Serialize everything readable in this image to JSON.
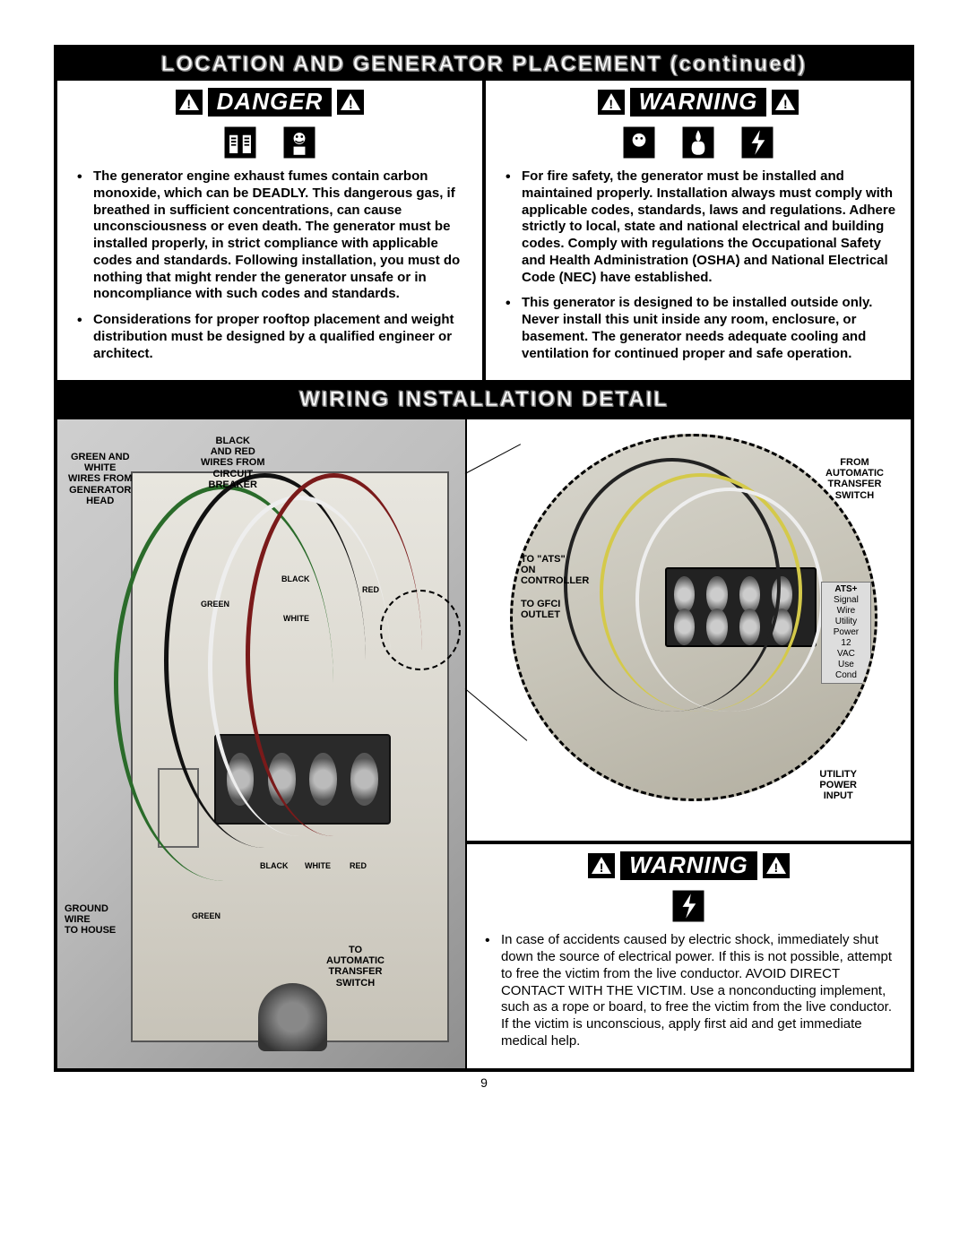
{
  "header": {
    "title": "LOCATION AND GENERATOR PLACEMENT (continued)"
  },
  "danger": {
    "label": "DANGER",
    "bullets": [
      "The generator engine exhaust fumes contain carbon monoxide, which can be DEADLY. This dangerous gas, if breathed in sufficient concentrations, can cause unconsciousness or even death. The generator must be installed properly, in strict   compliance with applicable codes and standards. Following installation, you must do nothing that might render the generator unsafe or in noncompliance with such codes and standards.",
      "Considerations for proper rooftop placement and weight distribution must be designed by a qualified engineer or architect."
    ]
  },
  "warning1": {
    "label": "WARNING",
    "bullets": [
      "For fire safety, the generator must be installed and maintained properly. Installation always must comply with applicable codes, standards, laws and regulations. Adhere strictly to local, state and national electrical and building codes. Comply with regulations the Occupational Safety and Health Administration (OSHA) and National Electrical Code (NEC) have established.",
      "This generator is designed to be installed outside only. Never install this unit inside any room, enclosure, or basement. The generator needs  adequate cooling and ventilation for continued proper and safe operation."
    ]
  },
  "wiring": {
    "title": "WIRING INSTALLATION DETAIL",
    "callouts": {
      "green_white": "GREEN AND\nWHITE\nWIRES FROM\nGENERATOR\nHEAD",
      "black_red": "BLACK\nAND RED\nWIRES FROM\nCIRCUIT\nBREAKER",
      "ground": "GROUND\nWIRE\nTO HOUSE",
      "to_ats": "TO\nAUTOMATIC\nTRANSFER\nSWITCH",
      "black": "BLACK",
      "red": "RED",
      "green": "GREEN",
      "white": "WHITE",
      "term_black": "BLACK",
      "term_white": "WHITE",
      "term_red": "RED",
      "term_green": "GREEN"
    },
    "detail": {
      "from_ats": "FROM\nAUTOMATIC\nTRANSFER\nSWITCH",
      "to_ats_ctrl": "TO \"ATS\"\nON\nCONTROLLER",
      "to_gfci": "TO GFCI\nOUTLET",
      "utility": "UTILITY\nPOWER\nINPUT",
      "ats_plus": "ATS+",
      "labels": [
        "Signal\nWire",
        "Utility\nPower",
        "12\nVAC",
        "Use\nCond"
      ]
    }
  },
  "warning2": {
    "label": "WARNING",
    "bullets": [
      "In case of accidents caused by electric shock, immediately shut down the source of electrical power.  If this is not possible, attempt to free the victim from the live conductor. AVOID DIRECT CONTACT WITH THE VICTIM. Use a nonconducting implement, such as a rope or board, to free the victim from the live conductor. If the victim is unconscious, apply first aid and get immediate medical help."
    ]
  },
  "page_number": "9",
  "colors": {
    "black": "#000000",
    "white": "#ffffff",
    "panel": "#d7d4cb"
  }
}
